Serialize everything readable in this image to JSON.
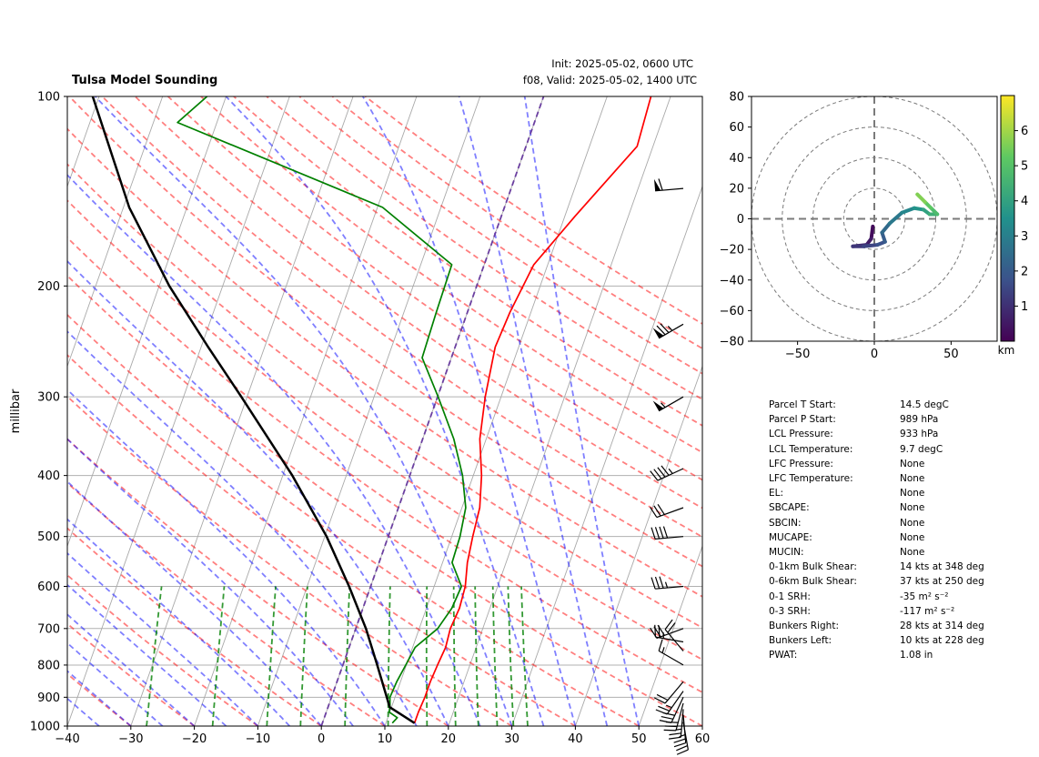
{
  "header": {
    "title": "Tulsa Model Sounding",
    "init": "Init: 2025-05-02, 0600 UTC",
    "valid": "f08, Valid: 2025-05-02, 1400 UTC"
  },
  "colors": {
    "temperature": "#ff0000",
    "dewpoint": "#008000",
    "parcel": "#000000",
    "dry_adiabat": "#ff0000",
    "moist_adiabat": "#0000ff",
    "mixing_ratio": "#008000",
    "isotherm": "#a9a9a9",
    "zero_isotherm": "#6b3fa0"
  },
  "chart_data": [
    {
      "type": "line",
      "name": "skew-t",
      "ylabel": "millibar",
      "xlim": [
        -40,
        60
      ],
      "ylim": [
        1000,
        100
      ],
      "yscale": "log",
      "skew_deg_per_decade": 35,
      "x_ticks": [
        "−40",
        "−30",
        "−20",
        "−10",
        "0",
        "10",
        "20",
        "30",
        "40",
        "50",
        "60"
      ],
      "y_ticks": [
        "100",
        "200",
        "300",
        "400",
        "500",
        "600",
        "700",
        "800",
        "900",
        "1000"
      ],
      "series": [
        {
          "key": "temperature",
          "points": [
            [
              989,
              14.5
            ],
            [
              950,
              14.5
            ],
            [
              900,
              14.7
            ],
            [
              850,
              14.7
            ],
            [
              800,
              14.9
            ],
            [
              750,
              15.2
            ],
            [
              700,
              14.9
            ],
            [
              650,
              15.2
            ],
            [
              600,
              14.9
            ],
            [
              550,
              13.9
            ],
            [
              500,
              13.3
            ],
            [
              450,
              12.8
            ],
            [
              400,
              11.3
            ],
            [
              350,
              9.0
            ],
            [
              300,
              7.5
            ],
            [
              250,
              6.3
            ],
            [
              220,
              6.7
            ],
            [
              185,
              7.8
            ],
            [
              155,
              11.6
            ],
            [
              120,
              17.5
            ],
            [
              100,
              16.9
            ]
          ]
        },
        {
          "key": "dewpoint",
          "points": [
            [
              989,
              11.0
            ],
            [
              970,
              11.5
            ],
            [
              950,
              9.9
            ],
            [
              930,
              9.7
            ],
            [
              900,
              9.2
            ],
            [
              850,
              9.4
            ],
            [
              800,
              9.9
            ],
            [
              750,
              10.4
            ],
            [
              700,
              12.9
            ],
            [
              650,
              14.0
            ],
            [
              600,
              14.3
            ],
            [
              550,
              11.5
            ],
            [
              500,
              11.3
            ],
            [
              450,
              10.6
            ],
            [
              400,
              8.3
            ],
            [
              350,
              4.9
            ],
            [
              300,
              0.1
            ],
            [
              260,
              -4.6
            ],
            [
              220,
              -4.9
            ],
            [
              185,
              -5.1
            ],
            [
              150,
              -19.2
            ],
            [
              110,
              -56.2
            ],
            [
              100,
              -53.0
            ]
          ]
        },
        {
          "key": "parcel",
          "points": [
            [
              989,
              14.5
            ],
            [
              933,
              9.7
            ],
            [
              900,
              8.7
            ],
            [
              800,
              5.4
            ],
            [
              700,
              1.6
            ],
            [
              600,
              -3.4
            ],
            [
              500,
              -9.7
            ],
            [
              400,
              -18.5
            ],
            [
              300,
              -30.9
            ],
            [
              250,
              -38.9
            ],
            [
              200,
              -48.4
            ],
            [
              150,
              -59.1
            ],
            [
              100,
              -71.0
            ]
          ]
        }
      ],
      "wind_barbs": [
        {
          "p": 985,
          "speed_kt": 20,
          "dir_deg": 170
        },
        {
          "p": 960,
          "speed_kt": 25,
          "dir_deg": 175
        },
        {
          "p": 940,
          "speed_kt": 25,
          "dir_deg": 185
        },
        {
          "p": 920,
          "speed_kt": 30,
          "dir_deg": 195
        },
        {
          "p": 900,
          "speed_kt": 30,
          "dir_deg": 205
        },
        {
          "p": 880,
          "speed_kt": 25,
          "dir_deg": 215
        },
        {
          "p": 850,
          "speed_kt": 20,
          "dir_deg": 220
        },
        {
          "p": 800,
          "speed_kt": 15,
          "dir_deg": 300
        },
        {
          "p": 760,
          "speed_kt": 20,
          "dir_deg": 320
        },
        {
          "p": 735,
          "speed_kt": 25,
          "dir_deg": 280
        },
        {
          "p": 700,
          "speed_kt": 30,
          "dir_deg": 250
        },
        {
          "p": 600,
          "speed_kt": 35,
          "dir_deg": 265
        },
        {
          "p": 500,
          "speed_kt": 40,
          "dir_deg": 265
        },
        {
          "p": 450,
          "speed_kt": 30,
          "dir_deg": 250
        },
        {
          "p": 390,
          "speed_kt": 45,
          "dir_deg": 245
        },
        {
          "p": 300,
          "speed_kt": 55,
          "dir_deg": 240
        },
        {
          "p": 230,
          "speed_kt": 75,
          "dir_deg": 240
        },
        {
          "p": 140,
          "speed_kt": 60,
          "dir_deg": 265
        }
      ]
    },
    {
      "type": "line",
      "name": "hodograph",
      "xlim": [
        -80,
        80
      ],
      "ylim": [
        -80,
        80
      ],
      "x_ticks": [
        "−50",
        "0",
        "50"
      ],
      "y_ticks": [
        "80",
        "60",
        "40",
        "20",
        "0",
        "−20",
        "−40",
        "−60",
        "−80"
      ],
      "rings": [
        20,
        40,
        60,
        80
      ],
      "colorbar": {
        "label": "km",
        "ticks": [
          "1",
          "2",
          "3",
          "4",
          "5",
          "6"
        ],
        "min": 0,
        "max": 7
      },
      "trace": [
        [
          -1,
          -5,
          0.05
        ],
        [
          -2,
          -13,
          0.4
        ],
        [
          -5,
          -17,
          0.7
        ],
        [
          -14,
          -18,
          1.0
        ],
        [
          -7,
          -18,
          1.3
        ],
        [
          2,
          -17,
          1.6
        ],
        [
          7,
          -15,
          1.9
        ],
        [
          5,
          -9,
          2.2
        ],
        [
          10,
          -3,
          2.6
        ],
        [
          18,
          4,
          3.0
        ],
        [
          26,
          7,
          3.4
        ],
        [
          32,
          6,
          3.8
        ],
        [
          36,
          3,
          4.2
        ],
        [
          41,
          3,
          4.6
        ],
        [
          37,
          7,
          5.0
        ],
        [
          33,
          11,
          5.4
        ],
        [
          28,
          16,
          5.9
        ]
      ]
    }
  ],
  "stats": [
    {
      "label": "Parcel T Start:",
      "value": "14.5 degC"
    },
    {
      "label": "Parcel P Start:",
      "value": "989 hPa"
    },
    {
      "label": "LCL Pressure:",
      "value": "933 hPa"
    },
    {
      "label": "LCL Temperature:",
      "value": "9.7 degC"
    },
    {
      "label": "LFC Pressure:",
      "value": "None"
    },
    {
      "label": "LFC Temperature:",
      "value": "None"
    },
    {
      "label": "EL:",
      "value": "None"
    },
    {
      "label": "SBCAPE:",
      "value": "None"
    },
    {
      "label": "SBCIN:",
      "value": "None"
    },
    {
      "label": "MUCAPE:",
      "value": "None"
    },
    {
      "label": "MUCIN:",
      "value": "None"
    },
    {
      "label": "0-1km Bulk Shear:",
      "value": "14 kts at 348 deg"
    },
    {
      "label": "0-6km Bulk Shear:",
      "value": "37 kts at 250 deg"
    },
    {
      "label": "0-1 SRH:",
      "value": "-35 m² s⁻²"
    },
    {
      "label": "0-3 SRH:",
      "value": "-117 m² s⁻²"
    },
    {
      "label": "Bunkers Right:",
      "value": "28 kts at 314 deg"
    },
    {
      "label": "Bunkers Left:",
      "value": "10 kts at 228 deg"
    },
    {
      "label": "PWAT:",
      "value": "1.08 in"
    }
  ]
}
